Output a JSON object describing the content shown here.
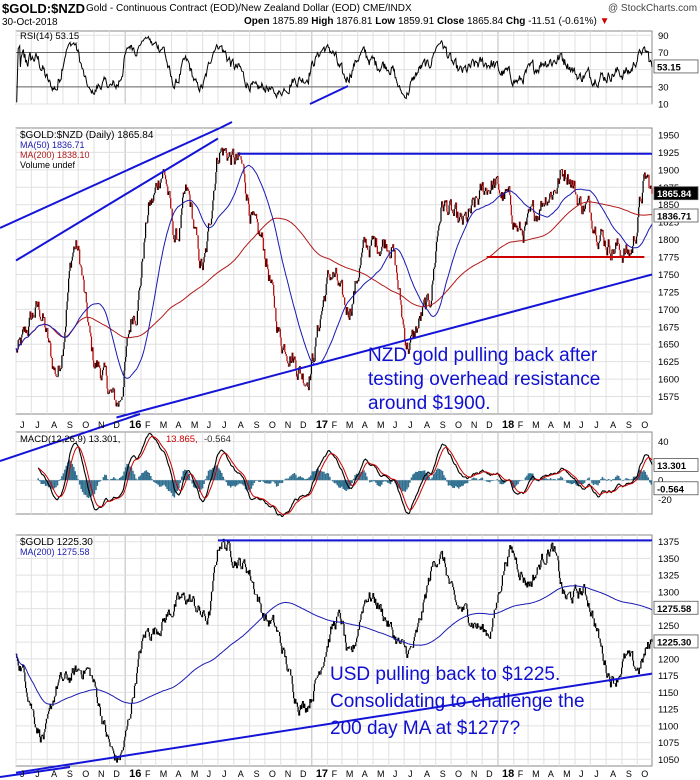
{
  "header": {
    "symbol": "$GOLD:$NZD",
    "description": "Gold - Continuous Contract (EOD)/New Zealand Dollar (EOD) CME/INDX",
    "date": "30-Oct-2018",
    "open_label": "Open",
    "open": "1875.89",
    "high_label": "High",
    "high": "1876.81",
    "low_label": "Low",
    "low": "1859.91",
    "close_label": "Close",
    "close": "1865.84",
    "chg_label": "Chg",
    "chg": "-11.51 (-0.61%)",
    "credit": "@ StockCharts.com"
  },
  "colors": {
    "price": "#000000",
    "ma50": "#1a1ab0",
    "ma200": "#b01a1a",
    "trend": "#1414d8",
    "support": "#cc0000",
    "annotation": "#1010d0",
    "hist": "#2f6f8f"
  },
  "chart_data": [
    {
      "type": "line",
      "panel": "rsi",
      "legend": "RSI(14) 53.15",
      "value_label": "53.15",
      "y_ticks": [
        "90",
        "70",
        "50",
        "30",
        "10"
      ],
      "ylim": [
        10,
        95
      ],
      "levels": [
        70,
        30
      ]
    },
    {
      "type": "line",
      "panel": "nzd",
      "legend": [
        "$GOLD:$NZD (Daily) 1865.84",
        "MA(50) 1836.71",
        "MA(200) 1838.10",
        "Volume undef"
      ],
      "series": [
        {
          "name": "$GOLD:$NZD (Daily)",
          "role": "price"
        },
        {
          "name": "MA(50)",
          "role": "ma50"
        },
        {
          "name": "MA(200)",
          "role": "ma200"
        }
      ],
      "ylim": [
        1550,
        1960
      ],
      "y_ticks": [
        "1950",
        "1925",
        "1900",
        "1875",
        "1850",
        "1825",
        "1800",
        "1775",
        "1750",
        "1725",
        "1700",
        "1675",
        "1650",
        "1625",
        "1600",
        "1575"
      ],
      "last_labels": [
        "1865.84",
        "1836.71"
      ],
      "x_start": "2015-06-01",
      "x_end": "2018-10-30",
      "key_points": [
        {
          "date": "2015-06-01",
          "value": 1640
        },
        {
          "date": "2015-07-15",
          "value": 1700
        },
        {
          "date": "2015-08-20",
          "value": 1610
        },
        {
          "date": "2015-09-25",
          "value": 1790
        },
        {
          "date": "2015-11-05",
          "value": 1620
        },
        {
          "date": "2015-12-17",
          "value": 1565
        },
        {
          "date": "2016-01-20",
          "value": 1700
        },
        {
          "date": "2016-02-20",
          "value": 1850
        },
        {
          "date": "2016-03-15",
          "value": 1900
        },
        {
          "date": "2016-04-10",
          "value": 1800
        },
        {
          "date": "2016-05-01",
          "value": 1860
        },
        {
          "date": "2016-06-01",
          "value": 1760
        },
        {
          "date": "2016-07-05",
          "value": 1930
        },
        {
          "date": "2016-08-10",
          "value": 1910
        },
        {
          "date": "2016-09-20",
          "value": 1800
        },
        {
          "date": "2016-11-08",
          "value": 1650
        },
        {
          "date": "2016-12-20",
          "value": 1605
        },
        {
          "date": "2017-02-10",
          "value": 1750
        },
        {
          "date": "2017-03-10",
          "value": 1700
        },
        {
          "date": "2017-04-20",
          "value": 1790
        },
        {
          "date": "2017-06-01",
          "value": 1800
        },
        {
          "date": "2017-07-10",
          "value": 1650
        },
        {
          "date": "2017-08-15",
          "value": 1700
        },
        {
          "date": "2017-09-15",
          "value": 1850
        },
        {
          "date": "2017-10-20",
          "value": 1820
        },
        {
          "date": "2017-12-20",
          "value": 1880
        },
        {
          "date": "2018-01-15",
          "value": 1860
        },
        {
          "date": "2018-02-15",
          "value": 1810
        },
        {
          "date": "2018-04-15",
          "value": 1870
        },
        {
          "date": "2018-05-15",
          "value": 1900
        },
        {
          "date": "2018-06-15",
          "value": 1850
        },
        {
          "date": "2018-08-15",
          "value": 1790
        },
        {
          "date": "2018-09-15",
          "value": 1780
        },
        {
          "date": "2018-10-20",
          "value": 1885
        },
        {
          "date": "2018-10-30",
          "value": 1865.84
        }
      ],
      "annotations": [
        {
          "kind": "trendline",
          "color": "trend",
          "from": {
            "date": "2015-06-01",
            "value": 1770
          },
          "to": {
            "date": "2016-07-01",
            "value": 1945
          }
        },
        {
          "kind": "trendline",
          "color": "trend",
          "from": {
            "date": "2015-12-15",
            "value": 1545
          },
          "to": {
            "date": "2018-10-30",
            "value": 1750
          }
        },
        {
          "kind": "horizontal",
          "color": "trend",
          "value": 1923,
          "from": "2016-08-10",
          "to": "2018-10-30"
        },
        {
          "kind": "horizontal",
          "color": "support",
          "value": 1775,
          "from": "2017-12-10",
          "to": "2018-10-15"
        }
      ],
      "caption": [
        "NZD gold pulling back after",
        "testing overhead resistance",
        "around $1900."
      ]
    },
    {
      "type": "line",
      "panel": "macd",
      "legend": [
        "MACD(12,26,9) 13.301,",
        "13.865,",
        "-0.564"
      ],
      "y_ticks": [
        "40",
        "20",
        "0",
        "-20"
      ],
      "ylim": [
        -35,
        50
      ],
      "last_labels": [
        "13.301",
        "-0.564"
      ]
    },
    {
      "type": "line",
      "panel": "usd",
      "legend": [
        "$GOLD 1225.30",
        "MA(200) 1275.58"
      ],
      "series": [
        {
          "name": "$GOLD",
          "role": "price"
        },
        {
          "name": "MA(200)",
          "role": "ma50"
        }
      ],
      "ylim": [
        1040,
        1385
      ],
      "y_ticks": [
        "1375",
        "1350",
        "1325",
        "1300",
        "1275",
        "1250",
        "1225",
        "1200",
        "1175",
        "1150",
        "1125",
        "1100",
        "1075",
        "1050"
      ],
      "last_labels": [
        "1275.58",
        "1225.30"
      ],
      "x_start": "2015-06-01",
      "x_end": "2018-10-30",
      "key_points": [
        {
          "date": "2015-06-01",
          "value": 1200
        },
        {
          "date": "2015-07-25",
          "value": 1085
        },
        {
          "date": "2015-08-25",
          "value": 1165
        },
        {
          "date": "2015-10-15",
          "value": 1185
        },
        {
          "date": "2015-12-17",
          "value": 1050
        },
        {
          "date": "2016-02-15",
          "value": 1240
        },
        {
          "date": "2016-05-01",
          "value": 1290
        },
        {
          "date": "2016-06-10",
          "value": 1260
        },
        {
          "date": "2016-07-06",
          "value": 1375
        },
        {
          "date": "2016-08-20",
          "value": 1340
        },
        {
          "date": "2016-10-10",
          "value": 1255
        },
        {
          "date": "2016-12-15",
          "value": 1130
        },
        {
          "date": "2017-02-25",
          "value": 1260
        },
        {
          "date": "2017-03-15",
          "value": 1200
        },
        {
          "date": "2017-04-20",
          "value": 1295
        },
        {
          "date": "2017-07-10",
          "value": 1210
        },
        {
          "date": "2017-09-08",
          "value": 1355
        },
        {
          "date": "2017-10-15",
          "value": 1275
        },
        {
          "date": "2017-12-12",
          "value": 1240
        },
        {
          "date": "2018-01-25",
          "value": 1360
        },
        {
          "date": "2018-03-01",
          "value": 1315
        },
        {
          "date": "2018-04-15",
          "value": 1365
        },
        {
          "date": "2018-05-15",
          "value": 1290
        },
        {
          "date": "2018-06-15",
          "value": 1300
        },
        {
          "date": "2018-08-16",
          "value": 1170
        },
        {
          "date": "2018-09-10",
          "value": 1200
        },
        {
          "date": "2018-10-01",
          "value": 1185
        },
        {
          "date": "2018-10-30",
          "value": 1225.3
        }
      ],
      "annotations": [
        {
          "kind": "horizontal",
          "color": "trend",
          "value": 1377,
          "from": "2016-07-01",
          "to": "2018-10-30"
        },
        {
          "kind": "trendline",
          "color": "trend",
          "from": {
            "date": "2015-06-01",
            "value": 1030
          },
          "to": {
            "date": "2018-10-30",
            "value": 1178
          }
        }
      ],
      "caption": [
        "USD pulling back to $1225.",
        "Consolidating to challenge the",
        "200 day MA at $1277?"
      ]
    }
  ],
  "x_axis": {
    "ticks": [
      {
        "date": "2015-06-01",
        "label": "J"
      },
      {
        "date": "2015-07-01",
        "label": "J"
      },
      {
        "date": "2015-08-01",
        "label": "A"
      },
      {
        "date": "2015-09-01",
        "label": "S"
      },
      {
        "date": "2015-10-01",
        "label": "O"
      },
      {
        "date": "2015-11-01",
        "label": "N"
      },
      {
        "date": "2015-12-01",
        "label": "D"
      },
      {
        "date": "2016-01-01",
        "label": "16",
        "major": true
      },
      {
        "date": "2016-02-01",
        "label": "F"
      },
      {
        "date": "2016-03-01",
        "label": "M"
      },
      {
        "date": "2016-04-01",
        "label": "A"
      },
      {
        "date": "2016-05-01",
        "label": "M"
      },
      {
        "date": "2016-06-01",
        "label": "J"
      },
      {
        "date": "2016-07-01",
        "label": "J"
      },
      {
        "date": "2016-08-01",
        "label": "A"
      },
      {
        "date": "2016-09-01",
        "label": "S"
      },
      {
        "date": "2016-10-01",
        "label": "O"
      },
      {
        "date": "2016-11-01",
        "label": "N"
      },
      {
        "date": "2016-12-01",
        "label": "D"
      },
      {
        "date": "2017-01-01",
        "label": "17",
        "major": true
      },
      {
        "date": "2017-02-01",
        "label": "F"
      },
      {
        "date": "2017-03-01",
        "label": "M"
      },
      {
        "date": "2017-04-01",
        "label": "A"
      },
      {
        "date": "2017-05-01",
        "label": "M"
      },
      {
        "date": "2017-06-01",
        "label": "J"
      },
      {
        "date": "2017-07-01",
        "label": "J"
      },
      {
        "date": "2017-08-01",
        "label": "A"
      },
      {
        "date": "2017-09-01",
        "label": "S"
      },
      {
        "date": "2017-10-01",
        "label": "O"
      },
      {
        "date": "2017-11-01",
        "label": "N"
      },
      {
        "date": "2017-12-01",
        "label": "D"
      },
      {
        "date": "2018-01-01",
        "label": "18",
        "major": true
      },
      {
        "date": "2018-02-01",
        "label": "F"
      },
      {
        "date": "2018-03-01",
        "label": "M"
      },
      {
        "date": "2018-04-01",
        "label": "A"
      },
      {
        "date": "2018-05-01",
        "label": "M"
      },
      {
        "date": "2018-06-01",
        "label": "J"
      },
      {
        "date": "2018-07-01",
        "label": "J"
      },
      {
        "date": "2018-08-01",
        "label": "A"
      },
      {
        "date": "2018-09-01",
        "label": "S"
      },
      {
        "date": "2018-10-01",
        "label": "O"
      }
    ]
  }
}
